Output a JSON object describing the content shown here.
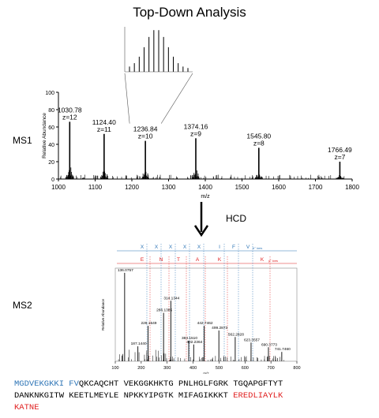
{
  "title": "Top-Down Analysis",
  "labels": {
    "ms1": "MS1",
    "ms2": "MS2",
    "hcd": "HCD"
  },
  "ms1": {
    "ylabel": "Relative Abundance",
    "xlabel": "m/z",
    "xlim": [
      1000,
      1800
    ],
    "ylim": [
      0,
      100
    ],
    "xticks": [
      "1000",
      "1100",
      "1200",
      "1300",
      "1400",
      "1500",
      "1600",
      "1700",
      "1800"
    ],
    "yticks": [
      "0",
      "20",
      "40",
      "60",
      "80",
      "100"
    ],
    "peaks": [
      {
        "mz": 1030.78,
        "rel": 66,
        "label": "1030.78",
        "charge": "z=12"
      },
      {
        "mz": 1124.4,
        "rel": 52,
        "label": "1124.40",
        "charge": "z=11"
      },
      {
        "mz": 1236.84,
        "rel": 44,
        "label": "1236.84",
        "charge": "z=10"
      },
      {
        "mz": 1374.16,
        "rel": 47,
        "label": "1374.16",
        "charge": "z=9"
      },
      {
        "mz": 1545.8,
        "rel": 36,
        "label": "1545.80",
        "charge": "z=8"
      },
      {
        "mz": 1766.49,
        "rel": 20,
        "label": "1766.49",
        "charge": "z=7"
      }
    ]
  },
  "ms2": {
    "ylabel": "Relative Abundance",
    "xlabel": "m/z",
    "xlim": [
      100,
      800
    ],
    "xticks": [
      "100",
      "200",
      "300",
      "400",
      "500",
      "600",
      "700",
      "800"
    ],
    "peaks": [
      {
        "mz": 136.0757,
        "rel": 95,
        "label": "136.0757"
      },
      {
        "mz": 187.144,
        "rel": 16,
        "label": "187.1440"
      },
      {
        "mz": 226.1549,
        "rel": 38,
        "label": "226.1549"
      },
      {
        "mz": 286.1385,
        "rel": 52,
        "label": "286.1385"
      },
      {
        "mz": 314.1344,
        "rel": 65,
        "label": "314.1344"
      },
      {
        "mz": 383.151,
        "rel": 22,
        "label": "383.1510"
      },
      {
        "mz": 402.2364,
        "rel": 18,
        "label": "402.2364"
      },
      {
        "mz": 442.7462,
        "rel": 38,
        "label": "442.7462"
      },
      {
        "mz": 499.2873,
        "rel": 33,
        "label": "499.2873"
      },
      {
        "mz": 562.2828,
        "rel": 26,
        "label": "562.2828"
      },
      {
        "mz": 623.3557,
        "rel": 20,
        "label": "623.3557"
      },
      {
        "mz": 690.3773,
        "rel": 15,
        "label": "690.3773"
      },
      {
        "mz": 741.746,
        "rel": 10,
        "label": "741.7460"
      }
    ],
    "b_ions": {
      "label": "b° ions",
      "letters": [
        "X",
        "X",
        "X",
        "X",
        "X",
        "I",
        "F",
        "V"
      ]
    },
    "y_ions": {
      "label": "y° ions",
      "letters": [
        "E",
        "N",
        "T",
        "A",
        "K",
        "K"
      ]
    }
  },
  "sequence": {
    "line1_blue": "MGDVEKGKKI FV",
    "line1_black": "QKCAQCHT VEKGGKHKTG PNLHGLFGRK TGQAPGFTYT",
    "line2_black": "DANKNKGITW KEETLMEYLE NPKKYIPGTK MIFAGIKKKT ",
    "line2_red": "EREDLIAYLK",
    "line3_red": "KATNE"
  },
  "colors": {
    "blue": "#2e75b6",
    "red": "#e02020",
    "grid": "#888888"
  }
}
